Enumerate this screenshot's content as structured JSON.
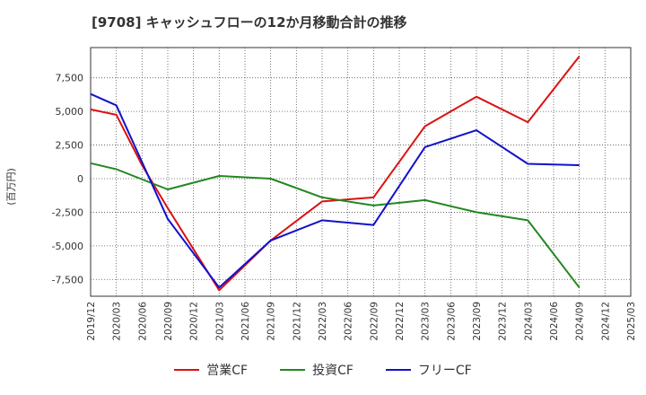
{
  "chart_data": {
    "type": "line",
    "title": "[9708]  キャッシュフローの12か月移動合計の推移",
    "ylabel": "(百万円)",
    "xlabel": "",
    "ylim": [
      -8750,
      9750
    ],
    "yticks": [
      -7500,
      -5000,
      -2500,
      0,
      2500,
      5000,
      7500
    ],
    "ytick_labels": [
      "-7,500",
      "-5,000",
      "-2,500",
      "0",
      "2,500",
      "5,000",
      "7,500"
    ],
    "categories": [
      "2019/12",
      "2020/03",
      "2020/06",
      "2020/09",
      "2020/12",
      "2021/03",
      "2021/06",
      "2021/09",
      "2021/12",
      "2022/03",
      "2022/06",
      "2022/09",
      "2022/12",
      "2023/03",
      "2023/06",
      "2023/09",
      "2023/12",
      "2024/03",
      "2024/06",
      "2024/09",
      "2024/12",
      "2025/03"
    ],
    "grid": true,
    "series": [
      {
        "name": "営業CF",
        "color": "#dd1111",
        "values": [
          5150,
          4750,
          1000,
          -2200,
          null,
          -8300,
          null,
          -4600,
          null,
          -1700,
          null,
          -1400,
          null,
          3900,
          null,
          6100,
          null,
          4200,
          null,
          9100,
          null,
          null
        ]
      },
      {
        "name": "投資CF",
        "color": "#228822",
        "values": [
          1150,
          700,
          null,
          -800,
          null,
          200,
          null,
          0,
          null,
          -1400,
          null,
          -2000,
          null,
          -1600,
          null,
          -2500,
          null,
          -3100,
          null,
          -8100,
          null,
          null
        ]
      },
      {
        "name": "フリーCF",
        "color": "#1111cc",
        "values": [
          6300,
          5450,
          null,
          -3000,
          null,
          -8100,
          null,
          -4600,
          null,
          -3100,
          null,
          -3450,
          null,
          2350,
          null,
          3600,
          null,
          1100,
          null,
          1000,
          null,
          null
        ]
      }
    ]
  }
}
